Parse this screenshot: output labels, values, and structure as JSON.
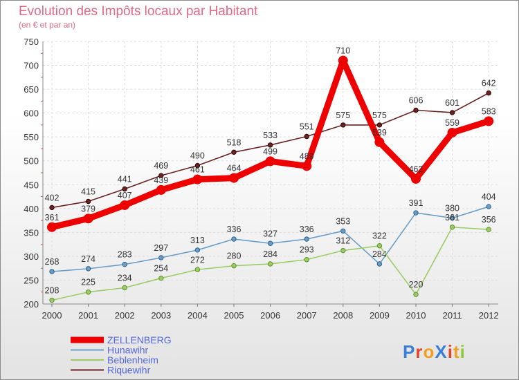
{
  "chart_data": {
    "type": "line",
    "title": "Evolution des Impôts locaux par Habitant",
    "subtitle": "(en € et par an)",
    "xlabel": "",
    "ylabel": "",
    "ylim": [
      200,
      750
    ],
    "yticks": [
      200,
      250,
      300,
      350,
      400,
      450,
      500,
      550,
      600,
      650,
      700,
      750
    ],
    "grid": true,
    "legend_position": "bottom-left",
    "categories": [
      "2000",
      "2001",
      "2002",
      "2003",
      "2004",
      "2005",
      "2006",
      "2007",
      "2008",
      "2009",
      "2010",
      "2011",
      "2012"
    ],
    "series": [
      {
        "name": "ZELLENBERG",
        "color": "#ee0000",
        "values": [
          361,
          379,
          407,
          439,
          461,
          464,
          499,
          489,
          710,
          539,
          462,
          559,
          583
        ]
      },
      {
        "name": "Hunawihr",
        "color": "#6a9ec8",
        "values": [
          268,
          274,
          283,
          297,
          313,
          336,
          327,
          336,
          353,
          284,
          391,
          380,
          404
        ]
      },
      {
        "name": "Beblenheim",
        "color": "#9ccc66",
        "values": [
          208,
          225,
          234,
          254,
          272,
          280,
          284,
          293,
          312,
          322,
          220,
          361,
          356
        ]
      },
      {
        "name": "Riquewihr",
        "color": "#6b2222",
        "values": [
          402,
          415,
          441,
          469,
          490,
          518,
          533,
          551,
          575,
          575,
          606,
          601,
          642
        ]
      }
    ]
  },
  "logo": {
    "text": "ProXiti",
    "letter_colors": [
      "#3a7fd5",
      "#e0452b",
      "#f0a020",
      "#3a7fd5",
      "#e0452b",
      "#f0a020",
      "#90c83c"
    ]
  }
}
